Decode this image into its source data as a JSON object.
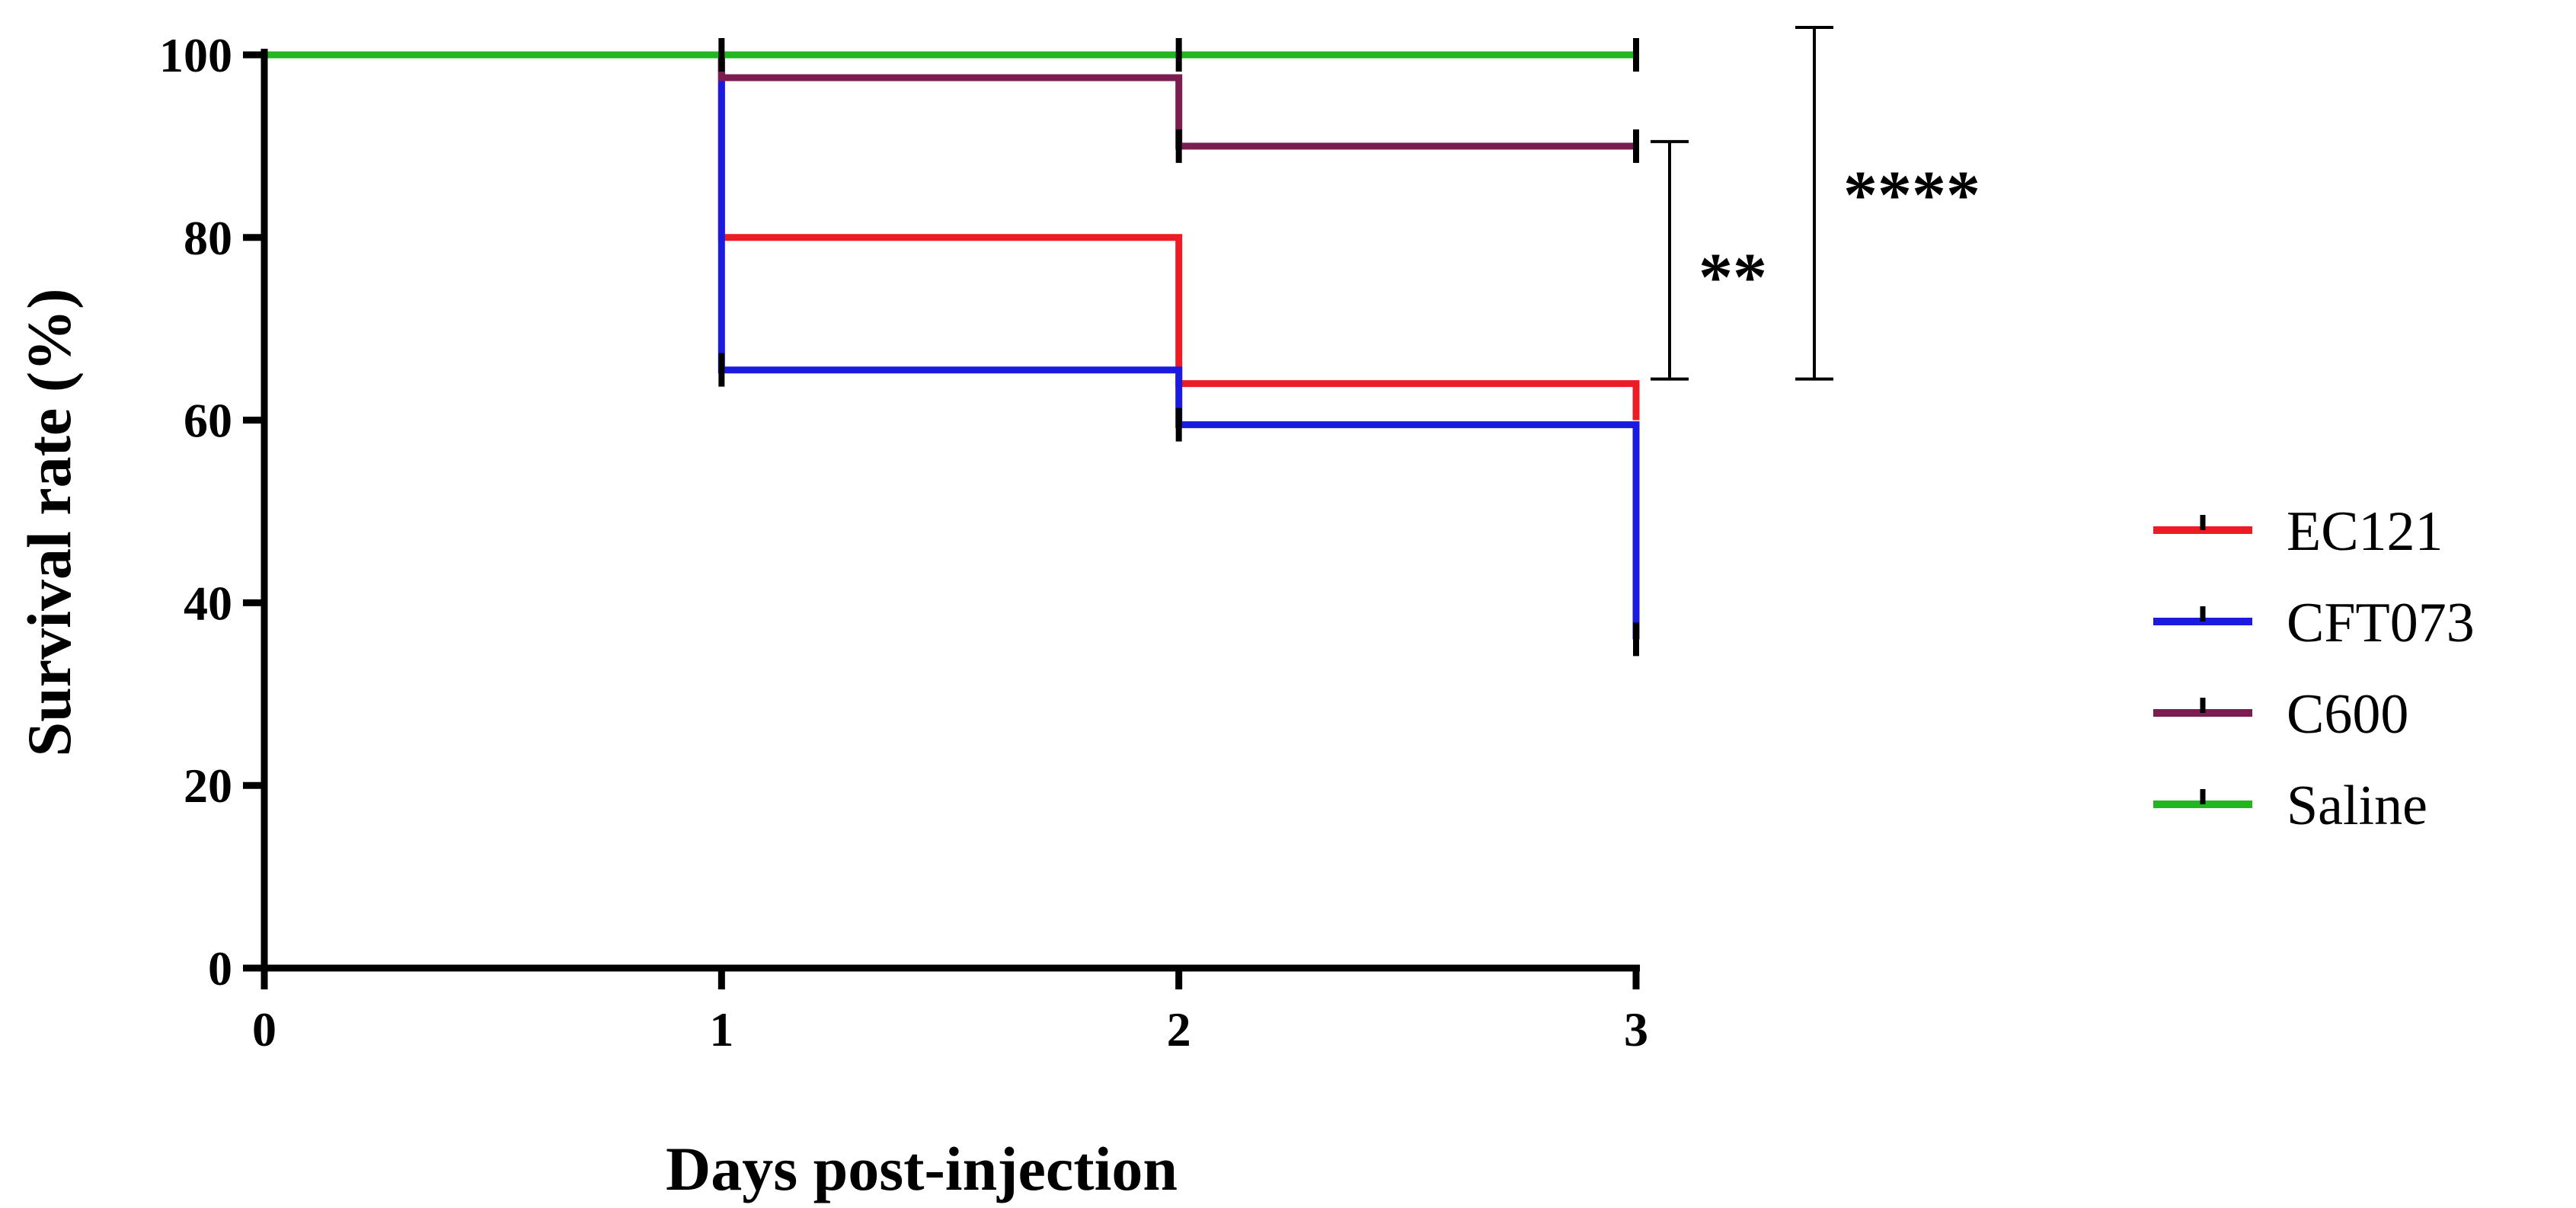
{
  "chart_data": {
    "type": "line",
    "xlabel": "Days post-injection",
    "ylabel": "Survival rate (%)",
    "xlim": [
      0,
      3
    ],
    "ylim": [
      0,
      100
    ],
    "xticks": [
      0,
      1,
      2,
      3
    ],
    "yticks": [
      0,
      20,
      40,
      60,
      80,
      100
    ],
    "grid": false,
    "legend_position": "right",
    "series": [
      {
        "name": "EC121",
        "color": "#ed1c24",
        "x": [
          0,
          1,
          1,
          2,
          2,
          3,
          3
        ],
        "y": [
          100,
          100,
          80,
          80,
          64,
          64,
          60
        ]
      },
      {
        "name": "CFT073",
        "color": "#1b1bdf",
        "x": [
          0,
          1,
          1,
          2,
          2,
          3,
          3
        ],
        "y": [
          100,
          100,
          65.5,
          65.5,
          59.5,
          59.5,
          36
        ]
      },
      {
        "name": "C600",
        "color": "#7b1d50",
        "x": [
          0,
          1,
          1,
          2,
          2,
          3
        ],
        "y": [
          100,
          100,
          97.5,
          97.5,
          90,
          90
        ]
      },
      {
        "name": "Saline",
        "color": "#22b622",
        "x": [
          0,
          3
        ],
        "y": [
          100,
          100
        ]
      }
    ],
    "censor_ticks": [
      {
        "x": 1,
        "y": 100
      },
      {
        "x": 2,
        "y": 100
      },
      {
        "x": 3,
        "y": 100
      },
      {
        "x": 2,
        "y": 90
      },
      {
        "x": 3,
        "y": 90
      },
      {
        "x": 1,
        "y": 65.5
      },
      {
        "x": 2,
        "y": 59.5
      },
      {
        "x": 3,
        "y": 36
      }
    ],
    "significance": [
      {
        "label": "**",
        "y_top": 90.5,
        "y_bottom": 64.5
      },
      {
        "label": "****",
        "y_top": 103,
        "y_bottom": 64.5
      }
    ]
  }
}
